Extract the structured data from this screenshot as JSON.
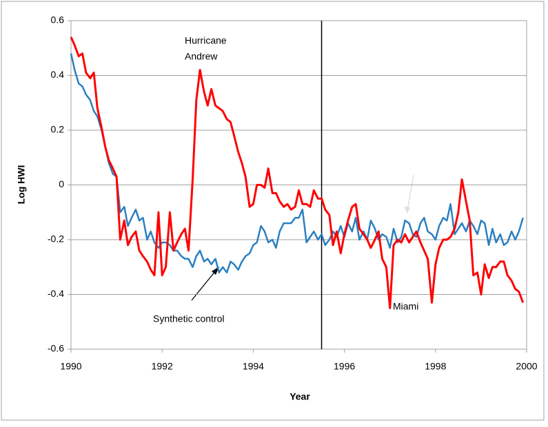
{
  "chart_data": {
    "type": "line",
    "x_label": "Year",
    "y_label": "Log HWI",
    "x": [
      1990,
      1990.08,
      1990.17,
      1990.25,
      1990.33,
      1990.42,
      1990.5,
      1990.58,
      1990.67,
      1990.75,
      1990.83,
      1990.92,
      1991,
      1991.08,
      1991.17,
      1991.25,
      1991.33,
      1991.42,
      1991.5,
      1991.58,
      1991.67,
      1991.75,
      1991.83,
      1991.92,
      1992,
      1992.08,
      1992.17,
      1992.25,
      1992.33,
      1992.42,
      1992.5,
      1992.58,
      1992.67,
      1992.75,
      1992.83,
      1992.92,
      1993,
      1993.08,
      1993.17,
      1993.25,
      1993.33,
      1993.42,
      1993.5,
      1993.58,
      1993.67,
      1993.75,
      1993.83,
      1993.92,
      1994,
      1994.08,
      1994.17,
      1994.25,
      1994.33,
      1994.42,
      1994.5,
      1994.58,
      1994.67,
      1994.75,
      1994.83,
      1994.92,
      1995,
      1995.08,
      1995.17,
      1995.25,
      1995.33,
      1995.42,
      1995.5,
      1995.58,
      1995.67,
      1995.75,
      1995.83,
      1995.92,
      1996,
      1996.08,
      1996.17,
      1996.25,
      1996.33,
      1996.42,
      1996.5,
      1996.58,
      1996.67,
      1996.75,
      1996.83,
      1996.92,
      1997,
      1997.08,
      1997.17,
      1997.25,
      1997.33,
      1997.42,
      1997.5,
      1997.58,
      1997.67,
      1997.75,
      1997.83,
      1997.92,
      1998,
      1998.08,
      1998.17,
      1998.25,
      1998.33,
      1998.42,
      1998.5,
      1998.58,
      1998.67,
      1998.75,
      1998.83,
      1998.92,
      1999,
      1999.08,
      1999.17,
      1999.25,
      1999.33,
      1999.42,
      1999.5,
      1999.58,
      1999.67,
      1999.75,
      1999.83,
      1999.92
    ],
    "series": [
      {
        "name": "Miami",
        "color": "#ff0000",
        "values": [
          0.54,
          0.51,
          0.47,
          0.48,
          0.41,
          0.39,
          0.41,
          0.28,
          0.21,
          0.14,
          0.09,
          0.06,
          0.03,
          -0.2,
          -0.13,
          -0.22,
          -0.19,
          -0.17,
          -0.24,
          -0.26,
          -0.28,
          -0.31,
          -0.33,
          -0.1,
          -0.33,
          -0.3,
          -0.1,
          -0.24,
          -0.21,
          -0.18,
          -0.16,
          -0.24,
          0.02,
          0.31,
          0.42,
          0.34,
          0.29,
          0.35,
          0.29,
          0.28,
          0.27,
          0.24,
          0.23,
          0.18,
          0.12,
          0.08,
          0.03,
          -0.08,
          -0.07,
          0,
          0,
          -0.01,
          0.06,
          -0.03,
          -0.03,
          -0.06,
          -0.08,
          -0.07,
          -0.09,
          -0.08,
          -0.02,
          -0.07,
          -0.07,
          -0.08,
          -0.02,
          -0.05,
          -0.05,
          -0.09,
          -0.11,
          -0.22,
          -0.17,
          -0.25,
          -0.18,
          -0.13,
          -0.08,
          -0.07,
          -0.16,
          -0.18,
          -0.2,
          -0.23,
          -0.2,
          -0.17,
          -0.27,
          -0.3,
          -0.45,
          -0.22,
          -0.2,
          -0.21,
          -0.18,
          -0.21,
          -0.19,
          -0.17,
          -0.21,
          -0.24,
          -0.27,
          -0.43,
          -0.29,
          -0.23,
          -0.2,
          -0.2,
          -0.19,
          -0.16,
          -0.1,
          0.02,
          -0.06,
          -0.13,
          -0.33,
          -0.32,
          -0.4,
          -0.29,
          -0.34,
          -0.3,
          -0.3,
          -0.28,
          -0.28,
          -0.33,
          -0.35,
          -0.38,
          -0.39,
          -0.43
        ]
      },
      {
        "name": "Synthetic control",
        "color": "#2a7fc1",
        "values": [
          0.48,
          0.42,
          0.37,
          0.36,
          0.33,
          0.31,
          0.27,
          0.25,
          0.2,
          0.14,
          0.08,
          0.04,
          0.03,
          -0.1,
          -0.08,
          -0.15,
          -0.12,
          -0.09,
          -0.13,
          -0.12,
          -0.2,
          -0.17,
          -0.21,
          -0.23,
          -0.21,
          -0.21,
          -0.22,
          -0.24,
          -0.24,
          -0.26,
          -0.27,
          -0.27,
          -0.3,
          -0.26,
          -0.24,
          -0.28,
          -0.27,
          -0.29,
          -0.27,
          -0.32,
          -0.3,
          -0.32,
          -0.28,
          -0.29,
          -0.31,
          -0.28,
          -0.26,
          -0.25,
          -0.22,
          -0.21,
          -0.15,
          -0.17,
          -0.21,
          -0.2,
          -0.23,
          -0.17,
          -0.14,
          -0.14,
          -0.14,
          -0.12,
          -0.12,
          -0.09,
          -0.21,
          -0.19,
          -0.17,
          -0.2,
          -0.18,
          -0.22,
          -0.2,
          -0.17,
          -0.19,
          -0.15,
          -0.19,
          -0.14,
          -0.17,
          -0.12,
          -0.2,
          -0.17,
          -0.2,
          -0.13,
          -0.16,
          -0.2,
          -0.18,
          -0.19,
          -0.23,
          -0.16,
          -0.21,
          -0.19,
          -0.13,
          -0.14,
          -0.18,
          -0.19,
          -0.14,
          -0.12,
          -0.17,
          -0.18,
          -0.2,
          -0.15,
          -0.12,
          -0.13,
          -0.07,
          -0.18,
          -0.16,
          -0.14,
          -0.17,
          -0.13,
          -0.15,
          -0.18,
          -0.13,
          -0.14,
          -0.22,
          -0.16,
          -0.21,
          -0.18,
          -0.22,
          -0.21,
          -0.17,
          -0.2,
          -0.17,
          -0.12
        ]
      }
    ],
    "annotations": [
      {
        "lines": [
          "Hurricane",
          "Andrew"
        ]
      }
    ],
    "vline": 1995.5,
    "xlim": [
      1990,
      2000
    ],
    "xticks": [
      1990,
      1992,
      1994,
      1996,
      1998,
      2000
    ],
    "ylim": [
      -0.6,
      0.6
    ],
    "yticks": [
      -0.6,
      -0.4,
      -0.2,
      0,
      0.2,
      0.4,
      0.6
    ],
    "grid": true
  }
}
